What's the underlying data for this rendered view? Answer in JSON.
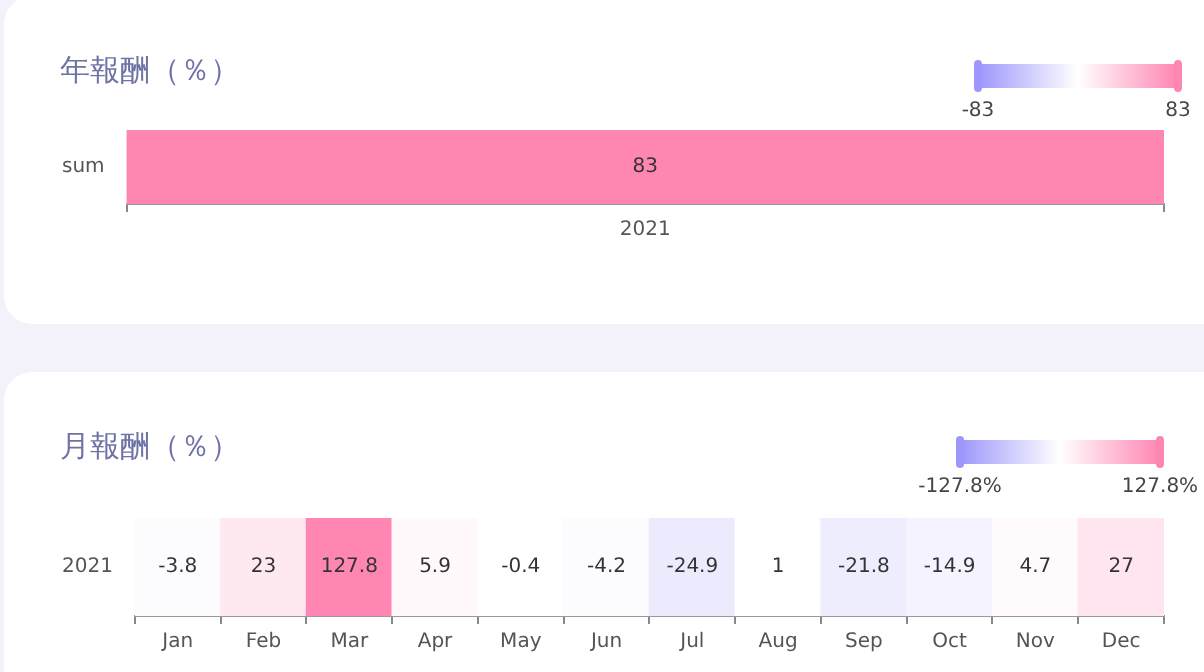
{
  "chart_data": [
    {
      "type": "heatmap",
      "title": "年報酬（％）",
      "categories": [
        "2021"
      ],
      "y_categories": [
        "sum"
      ],
      "cells": [
        [
          83
        ]
      ],
      "clim": [
        -83,
        83
      ],
      "cticks": [
        -83,
        83
      ],
      "data_labels": true
    },
    {
      "type": "heatmap",
      "title": "月報酬（％）",
      "categories": [
        "Jan",
        "Feb",
        "Mar",
        "Apr",
        "May",
        "Jun",
        "Jul",
        "Aug",
        "Sep",
        "Oct",
        "Nov",
        "Dec"
      ],
      "y_categories": [
        "2021"
      ],
      "cells": [
        [
          -3.8,
          23,
          127.8,
          5.9,
          -0.4,
          -4.2,
          -24.9,
          1,
          -21.8,
          -14.9,
          4.7,
          27
        ]
      ],
      "clim": [
        -127.8,
        127.8
      ],
      "cticks": [
        {
          "value": -127.8,
          "label": "-127.8%"
        },
        {
          "value": 127.8,
          "label": "127.8%"
        }
      ],
      "data_labels": true
    }
  ]
}
